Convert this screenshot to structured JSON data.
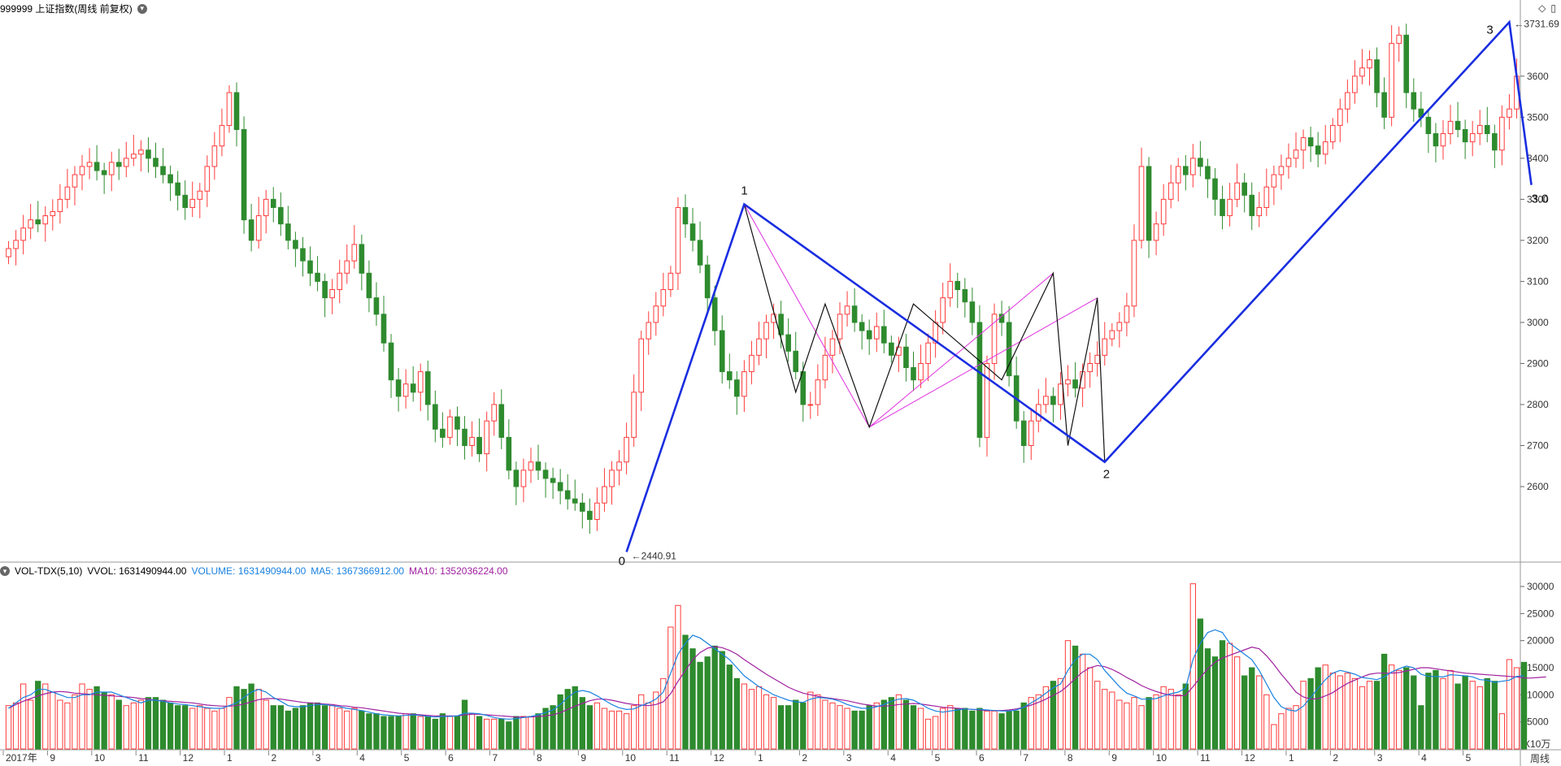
{
  "header": {
    "title": "999999 上证指数(周线 前复权)",
    "indicator": "VOL-TDX(5,10)",
    "vvol_label": "VVOL:",
    "vvol_value": "1631490944.00",
    "volume_label": "VOLUME:",
    "volume_value": "1631490944.00",
    "ma5_label": "MA5:",
    "ma5_value": "1367366912.00",
    "ma10_label": "MA10:",
    "ma10_value": "1352036224.00",
    "period_label": "周线",
    "unit_label": "X10万"
  },
  "colors": {
    "up": "#ff3b3b",
    "down": "#2e8b2e",
    "wave_main": "#1a2ee0",
    "wave_sub": "#111111",
    "wave_alt": "#e030e0",
    "ma5": "#1a82e0",
    "ma10": "#a020a0",
    "grid": "#c8c8c8"
  },
  "chart_data": [
    {
      "type": "candlestick",
      "title": "999999 上证指数(周线 前复权)",
      "y_ticks": [
        2600,
        2700,
        2800,
        2900,
        3000,
        3100,
        3200,
        3300,
        3400,
        3500,
        3600
      ],
      "ylim": [
        2420,
        3750
      ],
      "x_labels": [
        "2017年",
        "9",
        "10",
        "11",
        "12",
        "1",
        "2",
        "3",
        "4",
        "5",
        "6",
        "7",
        "8",
        "9",
        "10",
        "11",
        "12",
        "1",
        "2",
        "3",
        "4",
        "5",
        "6",
        "7",
        "8",
        "9",
        "10",
        "11",
        "12",
        "1",
        "2",
        "3",
        "4",
        "5"
      ],
      "close_path": [
        3180,
        3200,
        3230,
        3250,
        3240,
        3260,
        3270,
        3300,
        3330,
        3360,
        3380,
        3390,
        3370,
        3360,
        3390,
        3380,
        3400,
        3410,
        3420,
        3400,
        3380,
        3360,
        3340,
        3310,
        3280,
        3300,
        3320,
        3380,
        3430,
        3480,
        3560,
        3470,
        3250,
        3200,
        3260,
        3300,
        3280,
        3240,
        3200,
        3180,
        3150,
        3120,
        3100,
        3060,
        3080,
        3120,
        3150,
        3190,
        3120,
        3060,
        3020,
        2950,
        2860,
        2820,
        2850,
        2830,
        2880,
        2800,
        2740,
        2720,
        2770,
        2740,
        2700,
        2720,
        2680,
        2760,
        2800,
        2720,
        2640,
        2600,
        2640,
        2660,
        2640,
        2620,
        2610,
        2590,
        2570,
        2560,
        2540,
        2520,
        2560,
        2600,
        2640,
        2660,
        2720,
        2830,
        2960,
        3000,
        3040,
        3080,
        3120,
        3280,
        3240,
        3200,
        3140,
        3060,
        2980,
        2880,
        2860,
        2820,
        2880,
        2920,
        2960,
        3000,
        3020,
        2970,
        2930,
        2880,
        2800,
        2800,
        2860,
        2920,
        2960,
        3020,
        3040,
        3000,
        2980,
        2960,
        2990,
        2950,
        2920,
        2940,
        2890,
        2860,
        2900,
        2950,
        3000,
        3060,
        3100,
        3080,
        3050,
        3000,
        2720,
        2900,
        3020,
        3000,
        2870,
        2760,
        2700,
        2760,
        2800,
        2820,
        2800,
        2850,
        2860,
        2840,
        2880,
        2900,
        2920,
        2960,
        2980,
        3000,
        3040,
        3200,
        3380,
        3200,
        3240,
        3300,
        3340,
        3380,
        3360,
        3400,
        3380,
        3350,
        3300,
        3260,
        3300,
        3340,
        3310,
        3260,
        3280,
        3330,
        3360,
        3380,
        3400,
        3420,
        3450,
        3430,
        3410,
        3440,
        3480,
        3520,
        3560,
        3600,
        3620,
        3640,
        3560,
        3500,
        3680,
        3700,
        3560,
        3520,
        3500,
        3460,
        3430,
        3460,
        3490,
        3470,
        3440,
        3460,
        3480,
        3460,
        3420,
        3500,
        3520,
        3600
      ],
      "annotations": [
        {
          "text": "0",
          "date_index": 84,
          "price": 2440.91,
          "note": "2440.91"
        },
        {
          "text": "1",
          "date_index": 100,
          "price": 3288
        },
        {
          "text": "2",
          "date_index": 149,
          "price": 2660
        },
        {
          "text": "3",
          "date_index": 204,
          "price": 3731.69,
          "note": "3731.69"
        },
        {
          "text": "3.0",
          "date_index": 207,
          "price": 3335
        }
      ],
      "wave_points": [
        {
          "i": 84,
          "p": 2440.91
        },
        {
          "i": 100,
          "p": 3288
        },
        {
          "i": 149,
          "p": 2660
        },
        {
          "i": 204,
          "p": 3731.69
        },
        {
          "i": 207,
          "p": 3335
        }
      ],
      "sub_wave_points": [
        {
          "i": 100,
          "p": 3288
        },
        {
          "i": 107,
          "p": 2830
        },
        {
          "i": 111,
          "p": 3045
        },
        {
          "i": 117,
          "p": 2745
        },
        {
          "i": 123,
          "p": 3045
        },
        {
          "i": 135,
          "p": 2860
        },
        {
          "i": 142,
          "p": 3120
        },
        {
          "i": 144,
          "p": 2700
        },
        {
          "i": 148,
          "p": 3060
        },
        {
          "i": 149,
          "p": 2660
        }
      ],
      "alt_wave_points": [
        {
          "i": 100,
          "p": 3288
        },
        {
          "i": 117,
          "p": 2745
        },
        {
          "i": 142,
          "p": 3120
        },
        {
          "i": 117,
          "p": 2745
        },
        {
          "i": 148,
          "p": 3060
        }
      ]
    },
    {
      "type": "bar",
      "title": "VOL-TDX(5,10)",
      "y_ticks": [
        5000,
        10000,
        15000,
        20000,
        25000,
        30000
      ],
      "ylim": [
        0,
        31500
      ],
      "unit": "X10万",
      "volumes": [
        8000,
        8500,
        12000,
        9000,
        12500,
        12000,
        10500,
        9000,
        8500,
        10000,
        12000,
        11000,
        11500,
        10500,
        10000,
        9000,
        8000,
        8500,
        9000,
        9500,
        9500,
        9000,
        8500,
        8000,
        8000,
        7500,
        8000,
        7500,
        7000,
        7500,
        9500,
        11500,
        11000,
        12000,
        11000,
        9000,
        8000,
        8000,
        7000,
        7500,
        8000,
        8500,
        8500,
        8000,
        8000,
        7500,
        7000,
        7500,
        7000,
        6500,
        6500,
        6000,
        6000,
        6000,
        6500,
        6500,
        6000,
        6000,
        5500,
        6500,
        6000,
        6000,
        9000,
        6500,
        6000,
        5500,
        5500,
        5500,
        5000,
        6000,
        6000,
        6000,
        6500,
        7500,
        8000,
        10000,
        11000,
        11500,
        9500,
        8000,
        8500,
        7500,
        7000,
        7000,
        6500,
        8000,
        10000,
        8500,
        10500,
        13000,
        22500,
        26500,
        21000,
        18500,
        16000,
        17000,
        19000,
        18000,
        15500,
        13000,
        12000,
        11000,
        11500,
        10000,
        9500,
        8000,
        8000,
        9000,
        8500,
        10500,
        10000,
        9000,
        8500,
        8000,
        7500,
        7000,
        7000,
        8000,
        8500,
        9000,
        9500,
        10000,
        9000,
        8000,
        7500,
        5500,
        6000,
        7500,
        8000,
        7500,
        7500,
        7000,
        7500,
        7000,
        7000,
        6500,
        7000,
        7000,
        8500,
        9500,
        10000,
        11500,
        12500,
        13000,
        20000,
        19000,
        17500,
        15000,
        12500,
        11000,
        10500,
        9000,
        8500,
        9500,
        8000,
        9500,
        10000,
        11500,
        11000,
        10000,
        12000,
        30500,
        24000,
        18500,
        17000,
        20000,
        19500,
        17000,
        13500,
        15000,
        13500,
        10000,
        4500,
        6500,
        7500,
        8000,
        12500,
        13000,
        15000,
        15500,
        14000,
        13500,
        14000,
        13000,
        11500,
        12500,
        12500,
        17500,
        15500,
        14500,
        15000,
        13500,
        8000,
        14000,
        14500,
        13000,
        14500,
        12000,
        13500,
        12500,
        11500,
        13000,
        12500,
        6500,
        16500,
        15000,
        16000
      ],
      "ma5": [
        7500,
        8500,
        9500,
        10000,
        11000,
        11000,
        10500,
        10000,
        9500,
        9500,
        10000,
        10000,
        10500,
        10500,
        10500,
        10000,
        9500,
        9000,
        8500,
        9000,
        9000,
        8800,
        8500,
        8300,
        8200,
        8000,
        7800,
        7600,
        7500,
        7500,
        8000,
        8500,
        9500,
        10500,
        11000,
        10500,
        9500,
        8800,
        8000,
        7800,
        7800,
        8000,
        8200,
        8200,
        8000,
        7800,
        7500,
        7300,
        7100,
        6800,
        6500,
        6300,
        6200,
        6100,
        6200,
        6300,
        6200,
        6000,
        5900,
        6000,
        6000,
        6100,
        6600,
        6600,
        6500,
        6200,
        5800,
        5600,
        5500,
        5600,
        5800,
        6000,
        6300,
        6700,
        7200,
        8200,
        9500,
        10500,
        10800,
        10500,
        9800,
        9000,
        8200,
        7600,
        7300,
        7400,
        8000,
        8500,
        9200,
        10500,
        14000,
        17500,
        19500,
        21000,
        20500,
        19500,
        18500,
        17500,
        16500,
        15000,
        13500,
        12500,
        11500,
        10800,
        10000,
        9500,
        9000,
        8700,
        8600,
        9200,
        9500,
        9400,
        9200,
        8800,
        8200,
        7800,
        7500,
        7500,
        7800,
        8200,
        8800,
        9200,
        9300,
        9000,
        8300,
        7500,
        7000,
        6800,
        7000,
        7200,
        7400,
        7300,
        7300,
        7200,
        7100,
        7000,
        7000,
        7200,
        7700,
        8500,
        9300,
        10300,
        11300,
        12000,
        14500,
        16500,
        17500,
        17500,
        16500,
        14500,
        13000,
        11500,
        10300,
        9800,
        9200,
        9200,
        9300,
        9800,
        10200,
        10500,
        11200,
        16500,
        19500,
        21500,
        22000,
        21500,
        19500,
        18500,
        17500,
        16500,
        14500,
        12000,
        9500,
        7800,
        7200,
        7000,
        7900,
        9500,
        11200,
        12800,
        14000,
        14500,
        14200,
        13800,
        13200,
        13000,
        12800,
        13300,
        14200,
        14800,
        15300,
        15000,
        13800,
        13400,
        13400,
        13300,
        13700,
        13600,
        13500,
        13300,
        12800,
        12700,
        12300,
        12500,
        12700,
        13400,
        13500
      ],
      "ma10": [
        7500,
        8200,
        8800,
        9300,
        9800,
        10200,
        10500,
        10600,
        10500,
        10300,
        10200,
        10100,
        10000,
        9900,
        9800,
        9700,
        9600,
        9500,
        9300,
        9200,
        9000,
        8900,
        8800,
        8700,
        8600,
        8500,
        8300,
        8100,
        8000,
        7900,
        7900,
        8000,
        8300,
        8700,
        9100,
        9300,
        9300,
        9200,
        9000,
        8800,
        8600,
        8500,
        8400,
        8300,
        8200,
        8000,
        7900,
        7700,
        7600,
        7400,
        7200,
        7000,
        6800,
        6600,
        6500,
        6400,
        6300,
        6200,
        6100,
        6100,
        6100,
        6100,
        6300,
        6400,
        6400,
        6300,
        6200,
        6100,
        6000,
        5900,
        5900,
        5900,
        6000,
        6100,
        6300,
        6700,
        7300,
        7900,
        8400,
        8900,
        9200,
        9200,
        9000,
        8700,
        8400,
        8200,
        8100,
        8000,
        8200,
        8700,
        10200,
        12500,
        14500,
        16500,
        17800,
        18600,
        18900,
        18700,
        18200,
        17500,
        16500,
        15600,
        14700,
        13800,
        13000,
        12200,
        11400,
        10800,
        10300,
        10000,
        9700,
        9500,
        9300,
        9100,
        8900,
        8600,
        8300,
        8100,
        7900,
        7900,
        8000,
        8200,
        8300,
        8400,
        8300,
        8100,
        7900,
        7700,
        7600,
        7500,
        7400,
        7300,
        7200,
        7100,
        7100,
        7100,
        7200,
        7400,
        7700,
        8100,
        8600,
        9200,
        9900,
        10600,
        11700,
        13000,
        14200,
        15000,
        15400,
        15200,
        14700,
        14000,
        13200,
        12500,
        11700,
        11100,
        10600,
        10200,
        9900,
        9800,
        9900,
        11500,
        13200,
        14800,
        16000,
        16800,
        17300,
        17800,
        18300,
        18800,
        18500,
        17200,
        15600,
        13800,
        12200,
        10500,
        9600,
        9200,
        9300,
        9800,
        10400,
        11300,
        12100,
        12700,
        13300,
        13800,
        14000,
        14000,
        14000,
        14100,
        14400,
        14700,
        15000,
        15000,
        14800,
        14600,
        14400,
        14200,
        14000,
        13900,
        13800,
        13700,
        13600,
        13500,
        13400,
        13300,
        13100,
        13100,
        13200,
        13300
      ]
    }
  ]
}
